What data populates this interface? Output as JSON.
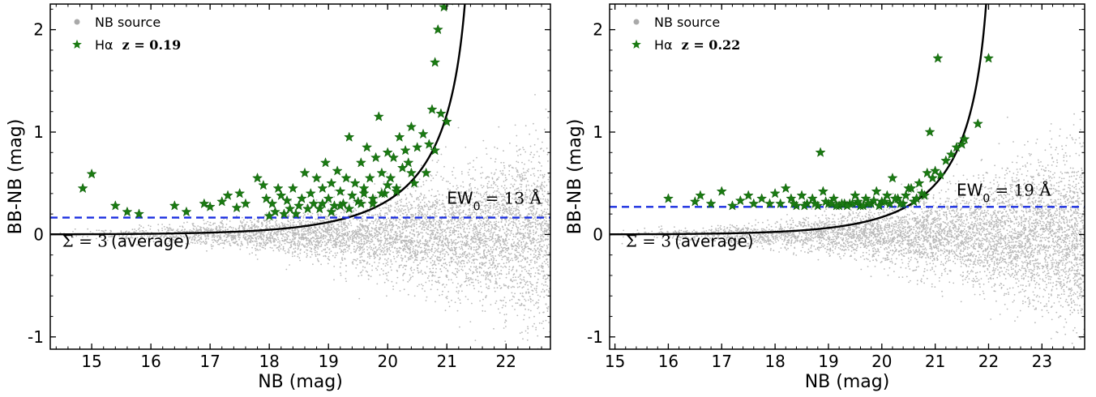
{
  "chart_data": [
    {
      "type": "scatter",
      "xlabel": "NB (mag)",
      "ylabel": "BB-NB (mag)",
      "xlim": [
        14.3,
        22.75
      ],
      "ylim": [
        -1.12,
        2.25
      ],
      "xticks": [
        15,
        16,
        17,
        18,
        19,
        20,
        21,
        22
      ],
      "yticks": [
        -1,
        0,
        1,
        2
      ],
      "tick_labels_x": [
        "15",
        "16",
        "17",
        "18",
        "19",
        "20",
        "21",
        "22"
      ],
      "tick_labels_y": [
        "-1",
        "0",
        "1",
        "2"
      ],
      "legend": {
        "position": "top-left",
        "entries": [
          {
            "label": "NB source",
            "color": "#a9a9a9",
            "marker": "circle"
          },
          {
            "label": "Hα",
            "label_math": "z = 0.19",
            "color": "#1a7a12",
            "marker": "star"
          }
        ]
      },
      "series": [
        {
          "name": "NB source",
          "marker": "dot",
          "color": "#b8b8b8",
          "x_range": [
            14.3,
            22.75
          ],
          "description_of_cloud": "dense cloud centered near BB-NB = 0, scatter widening toward faint NB"
        },
        {
          "name": "Hα z = 0.19",
          "marker": "star",
          "color": "#1a7a12",
          "x": [
            14.85,
            15.0,
            15.4,
            15.6,
            15.8,
            16.4,
            16.6,
            16.9,
            17.0,
            17.2,
            17.3,
            17.45,
            17.5,
            17.6,
            17.8,
            17.9,
            17.95,
            18.0,
            18.05,
            18.15,
            18.2,
            18.3,
            18.35,
            18.4,
            18.5,
            18.55,
            18.6,
            18.7,
            18.75,
            18.8,
            18.85,
            18.9,
            18.95,
            19.0,
            19.05,
            19.1,
            19.15,
            19.2,
            19.25,
            19.3,
            19.35,
            19.4,
            19.45,
            19.5,
            19.55,
            19.6,
            19.65,
            19.7,
            19.75,
            19.8,
            19.85,
            19.9,
            19.95,
            20.0,
            20.05,
            20.1,
            20.15,
            20.2,
            20.25,
            20.3,
            20.35,
            20.4,
            20.5,
            20.6,
            20.7,
            20.75,
            20.8,
            20.85,
            20.9,
            20.95,
            21.0,
            21.05,
            18.1,
            18.45,
            18.65,
            19.05,
            19.35,
            19.55,
            19.75,
            19.9,
            20.15,
            20.45,
            20.65,
            18.25,
            18.9,
            19.2,
            19.6,
            20.0,
            20.4,
            20.8
          ],
          "y": [
            0.45,
            0.59,
            0.28,
            0.22,
            0.2,
            0.28,
            0.22,
            0.3,
            0.27,
            0.32,
            0.38,
            0.26,
            0.4,
            0.3,
            0.55,
            0.48,
            0.35,
            0.18,
            0.3,
            0.45,
            0.38,
            0.33,
            0.25,
            0.45,
            0.28,
            0.35,
            0.6,
            0.4,
            0.3,
            0.55,
            0.25,
            0.45,
            0.7,
            0.35,
            0.5,
            0.28,
            0.62,
            0.42,
            0.3,
            0.55,
            0.95,
            0.38,
            0.5,
            0.32,
            0.7,
            0.45,
            0.85,
            0.55,
            0.3,
            0.75,
            1.15,
            0.6,
            0.4,
            0.8,
            0.55,
            0.75,
            0.45,
            0.95,
            0.65,
            0.82,
            0.7,
            1.05,
            0.85,
            0.98,
            0.88,
            1.22,
            1.68,
            2.0,
            1.18,
            2.22,
            1.1,
            2.28,
            0.22,
            0.2,
            0.25,
            0.22,
            0.25,
            0.3,
            0.35,
            0.4,
            0.42,
            0.5,
            0.6,
            0.2,
            0.3,
            0.28,
            0.4,
            0.48,
            0.6,
            0.82
          ]
        },
        {
          "name": "Σ = 3 (average)",
          "type": "line",
          "color": "#000000",
          "curve": {
            "form": "-2.5*log10(1 - A*10^(0.4*(NB - m0)))",
            "A": 1,
            "m0": 21.45
          }
        },
        {
          "name": "EW0 = 13 Å",
          "type": "hline",
          "color": "#1a2ee0",
          "dashed": true,
          "y": 0.165
        }
      ],
      "annotations": [
        {
          "text": "EW",
          "sub": "0",
          "math": "= 13 Å",
          "at": [
            21.0,
            0.3
          ]
        },
        {
          "math": "Σ = 3",
          "text": "(average)",
          "at": [
            14.5,
            -0.12
          ]
        }
      ]
    },
    {
      "type": "scatter",
      "xlabel": "NB (mag)",
      "ylabel": "BB-NB (mag)",
      "xlim": [
        14.9,
        23.8
      ],
      "ylim": [
        -1.12,
        2.25
      ],
      "xticks": [
        15,
        16,
        17,
        18,
        19,
        20,
        21,
        22,
        23
      ],
      "yticks": [
        -1,
        0,
        1,
        2
      ],
      "tick_labels_x": [
        "15",
        "16",
        "17",
        "18",
        "19",
        "20",
        "21",
        "22",
        "23"
      ],
      "tick_labels_y": [
        "-1",
        "0",
        "1",
        "2"
      ],
      "legend": {
        "position": "top-left",
        "entries": [
          {
            "label": "NB source",
            "color": "#a9a9a9",
            "marker": "circle"
          },
          {
            "label": "Hα",
            "label_math": "z = 0.22",
            "color": "#1a7a12",
            "marker": "star"
          }
        ]
      },
      "series": [
        {
          "name": "NB source",
          "marker": "dot",
          "color": "#b8b8b8",
          "x_range": [
            14.9,
            23.8
          ],
          "description_of_cloud": "dense cloud centered near BB-NB = 0, scatter widening toward faint NB"
        },
        {
          "name": "Hα z = 0.22",
          "marker": "star",
          "color": "#1a7a12",
          "x": [
            16.0,
            16.5,
            16.6,
            16.8,
            17.0,
            17.2,
            17.35,
            17.5,
            17.6,
            17.75,
            17.9,
            18.0,
            18.1,
            18.2,
            18.3,
            18.4,
            18.5,
            18.6,
            18.7,
            18.8,
            18.85,
            18.9,
            19.0,
            19.1,
            19.2,
            19.3,
            19.4,
            19.5,
            19.6,
            19.7,
            19.8,
            19.9,
            20.0,
            20.1,
            20.2,
            20.3,
            20.4,
            20.5,
            20.6,
            20.7,
            20.8,
            20.9,
            21.0,
            21.05,
            21.1,
            21.2,
            21.3,
            21.4,
            21.5,
            21.55,
            21.8,
            22.0,
            20.95,
            20.85,
            20.75,
            20.65,
            20.55,
            20.45,
            20.35,
            20.25,
            20.15,
            20.05,
            19.95,
            19.85,
            19.75,
            19.65,
            19.55,
            19.45,
            19.35,
            19.25,
            19.15,
            19.05,
            18.95,
            18.75,
            18.55,
            18.35
          ],
          "y": [
            0.35,
            0.32,
            0.38,
            0.3,
            0.42,
            0.28,
            0.33,
            0.38,
            0.3,
            0.35,
            0.3,
            0.4,
            0.3,
            0.45,
            0.35,
            0.28,
            0.38,
            0.3,
            0.35,
            0.28,
            0.8,
            0.42,
            0.3,
            0.35,
            0.28,
            0.3,
            0.3,
            0.38,
            0.28,
            0.35,
            0.3,
            0.42,
            0.32,
            0.38,
            0.55,
            0.35,
            0.3,
            0.45,
            0.32,
            0.5,
            0.38,
            1.0,
            0.62,
            1.72,
            0.58,
            0.72,
            0.78,
            0.85,
            0.88,
            0.93,
            1.08,
            1.72,
            0.55,
            0.6,
            0.4,
            0.35,
            0.45,
            0.38,
            0.3,
            0.35,
            0.3,
            0.32,
            0.28,
            0.33,
            0.3,
            0.28,
            0.32,
            0.3,
            0.28,
            0.3,
            0.28,
            0.3,
            0.32,
            0.3,
            0.28,
            0.3
          ]
        },
        {
          "name": "Σ = 3 (average)",
          "type": "line",
          "color": "#000000",
          "curve": {
            "form": "-2.5*log10(1 - A*10^(0.4*(NB - m0)))",
            "A": 1,
            "m0": 22.1
          }
        },
        {
          "name": "EW0 = 19 Å",
          "type": "hline",
          "color": "#1a2ee0",
          "dashed": true,
          "y": 0.27
        }
      ],
      "annotations": [
        {
          "text": "EW",
          "sub": "0",
          "math": "= 19 Å",
          "at": [
            21.4,
            0.38
          ]
        },
        {
          "math": "Σ = 3",
          "text": "(average)",
          "at": [
            15.2,
            -0.12
          ]
        }
      ]
    }
  ]
}
